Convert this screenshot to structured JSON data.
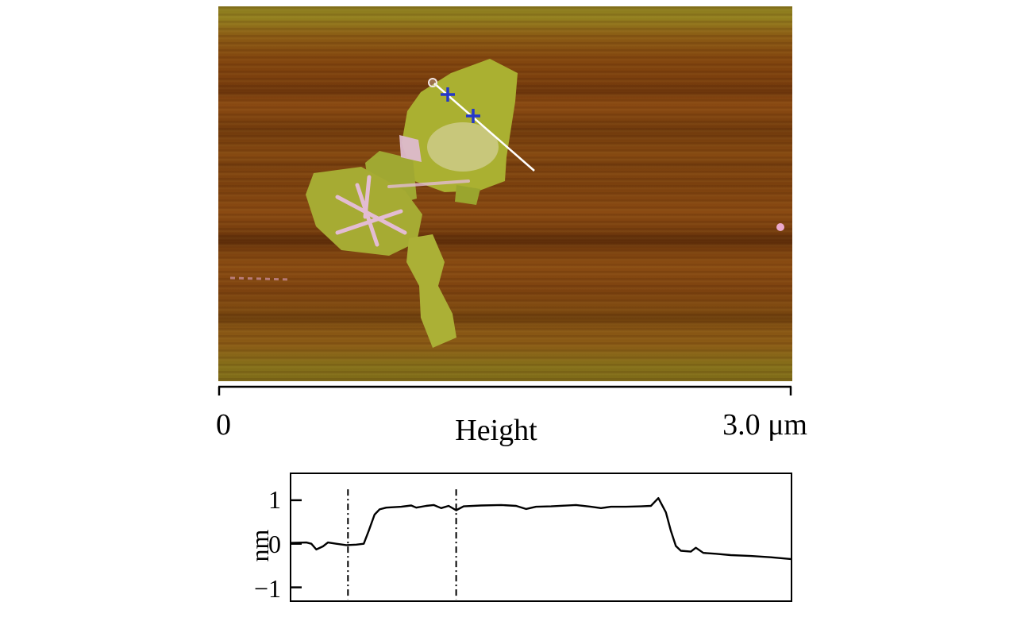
{
  "figure": {
    "type": "AFM topography image with height profile",
    "scale_label_left": "0",
    "scale_label_center": "Height",
    "scale_label_right": "3.0 μm",
    "profile_ylabel": "nm",
    "ytick_labels": [
      "1",
      "0",
      "−1"
    ]
  },
  "afm": {
    "colors": {
      "substrate_brown": "#83470f",
      "substrate_olive_edge": "#8a7a1e",
      "flake_green": "#aab031",
      "flake_highlight": "#cbca84",
      "wrinkle_pink": "#e3bcd3",
      "section_line_white": "#ffffff",
      "cursor_marker_blue": "#2438c8"
    },
    "markers": {
      "section_line": "white diagonal profile line",
      "cursor_crosses": 2,
      "start_circle": 1,
      "pink_particle": 1
    }
  },
  "chart_data": {
    "type": "line",
    "title": "",
    "xlabel": "",
    "ylabel": "nm",
    "x_unit": "μm",
    "xlim": [
      0,
      3.0
    ],
    "ylim": [
      -1.3,
      1.6
    ],
    "yticks": [
      1,
      0,
      -1
    ],
    "grid": false,
    "legend": "none",
    "cursors_x": [
      0.34,
      0.99
    ],
    "points": [
      [
        0.0,
        0.02
      ],
      [
        0.09,
        0.03
      ],
      [
        0.12,
        0.0
      ],
      [
        0.15,
        -0.13
      ],
      [
        0.19,
        -0.06
      ],
      [
        0.22,
        0.03
      ],
      [
        0.27,
        0.0
      ],
      [
        0.33,
        -0.03
      ],
      [
        0.39,
        -0.02
      ],
      [
        0.435,
        0.0
      ],
      [
        0.465,
        0.3
      ],
      [
        0.5,
        0.67
      ],
      [
        0.53,
        0.79
      ],
      [
        0.57,
        0.83
      ],
      [
        0.66,
        0.85
      ],
      [
        0.72,
        0.88
      ],
      [
        0.75,
        0.83
      ],
      [
        0.81,
        0.87
      ],
      [
        0.855,
        0.89
      ],
      [
        0.9,
        0.82
      ],
      [
        0.945,
        0.87
      ],
      [
        0.99,
        0.77
      ],
      [
        1.035,
        0.86
      ],
      [
        1.14,
        0.88
      ],
      [
        1.26,
        0.89
      ],
      [
        1.35,
        0.87
      ],
      [
        1.41,
        0.8
      ],
      [
        1.47,
        0.85
      ],
      [
        1.56,
        0.86
      ],
      [
        1.71,
        0.89
      ],
      [
        1.8,
        0.85
      ],
      [
        1.86,
        0.82
      ],
      [
        1.92,
        0.85
      ],
      [
        2.01,
        0.85
      ],
      [
        2.1,
        0.86
      ],
      [
        2.16,
        0.87
      ],
      [
        2.205,
        1.05
      ],
      [
        2.25,
        0.72
      ],
      [
        2.28,
        0.3
      ],
      [
        2.31,
        -0.05
      ],
      [
        2.34,
        -0.16
      ],
      [
        2.4,
        -0.18
      ],
      [
        2.43,
        -0.09
      ],
      [
        2.475,
        -0.21
      ],
      [
        2.55,
        -0.23
      ],
      [
        2.64,
        -0.26
      ],
      [
        2.76,
        -0.28
      ],
      [
        2.88,
        -0.31
      ],
      [
        3.0,
        -0.35
      ]
    ]
  }
}
